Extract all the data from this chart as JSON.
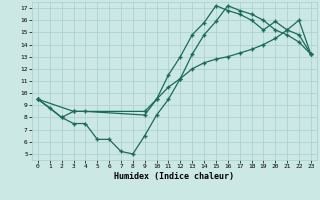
{
  "xlabel": "Humidex (Indice chaleur)",
  "xlim": [
    -0.5,
    23.5
  ],
  "ylim": [
    4.5,
    17.5
  ],
  "xticks": [
    0,
    1,
    2,
    3,
    4,
    5,
    6,
    7,
    8,
    9,
    10,
    11,
    12,
    13,
    14,
    15,
    16,
    17,
    18,
    19,
    20,
    21,
    22,
    23
  ],
  "yticks": [
    5,
    6,
    7,
    8,
    9,
    10,
    11,
    12,
    13,
    14,
    15,
    16,
    17
  ],
  "bg_color": "#cce8e4",
  "grid_color": "#aacfcb",
  "line_color": "#1a6b5a",
  "line1_x": [
    0,
    1,
    2,
    3,
    4,
    5,
    6,
    7,
    8,
    9,
    10,
    11,
    12,
    13,
    14,
    15,
    16,
    17,
    18,
    19,
    20,
    21,
    22,
    23
  ],
  "line1_y": [
    9.5,
    8.8,
    8.0,
    7.5,
    7.5,
    6.2,
    6.2,
    5.2,
    5.0,
    6.5,
    8.2,
    9.5,
    11.2,
    13.2,
    14.8,
    15.9,
    17.2,
    16.8,
    16.5,
    16.0,
    15.2,
    14.8,
    14.2,
    13.2
  ],
  "line2_x": [
    0,
    2,
    3,
    4,
    9,
    10,
    11,
    12,
    13,
    14,
    15,
    16,
    17,
    18,
    19,
    20,
    21,
    22,
    23
  ],
  "line2_y": [
    9.5,
    8.0,
    8.5,
    8.5,
    8.2,
    9.5,
    11.5,
    13.0,
    14.8,
    15.8,
    17.2,
    16.8,
    16.5,
    16.0,
    15.2,
    15.9,
    15.2,
    14.8,
    13.2
  ],
  "line3_x": [
    0,
    3,
    9,
    10,
    11,
    12,
    13,
    14,
    15,
    16,
    17,
    18,
    19,
    20,
    21,
    22,
    23
  ],
  "line3_y": [
    9.5,
    8.5,
    8.5,
    9.5,
    10.5,
    11.2,
    12.0,
    12.5,
    12.8,
    13.0,
    13.3,
    13.6,
    14.0,
    14.5,
    15.2,
    16.0,
    13.2
  ]
}
